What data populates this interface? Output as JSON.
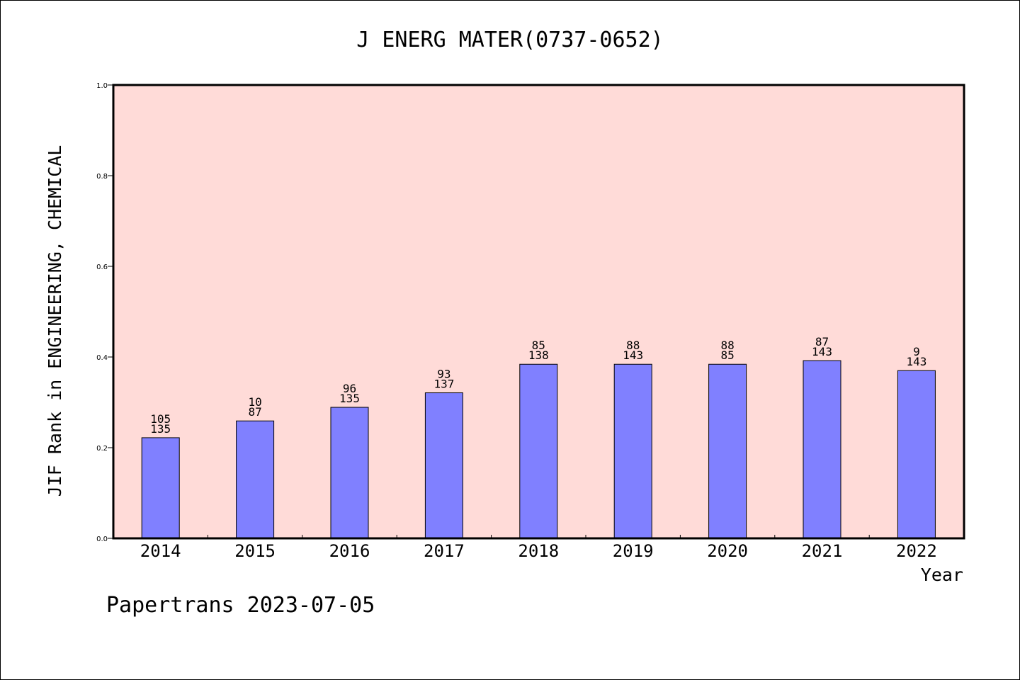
{
  "chart_data": {
    "type": "bar",
    "title": "J ENERG MATER(0737-0652)",
    "xlabel": "Year",
    "ylabel": "JIF Rank in ENGINEERING, CHEMICAL",
    "ylim": [
      0,
      1.0
    ],
    "yticks": [
      "0.0",
      "0.2",
      "0.4",
      "0.6",
      "0.8",
      "1.0"
    ],
    "categories": [
      "2014",
      "2015",
      "2016",
      "2017",
      "2018",
      "2019",
      "2020",
      "2021",
      "2022"
    ],
    "values": [
      0.222,
      0.259,
      0.289,
      0.321,
      0.384,
      0.384,
      0.384,
      0.392,
      0.37
    ],
    "rank_labels": [
      "105",
      "10",
      "96",
      "93",
      "85",
      "88",
      "88",
      "87",
      "9"
    ],
    "total_labels": [
      "135",
      "87",
      "135",
      "137",
      "138",
      "143",
      "85",
      "143",
      "143"
    ],
    "grid": false,
    "legend": "none"
  },
  "footer": "Papertrans 2023-07-05",
  "colors": {
    "plot_background": "#ffdbd8",
    "bar_fill": "#8080ff",
    "bar_stroke": "#000000"
  }
}
